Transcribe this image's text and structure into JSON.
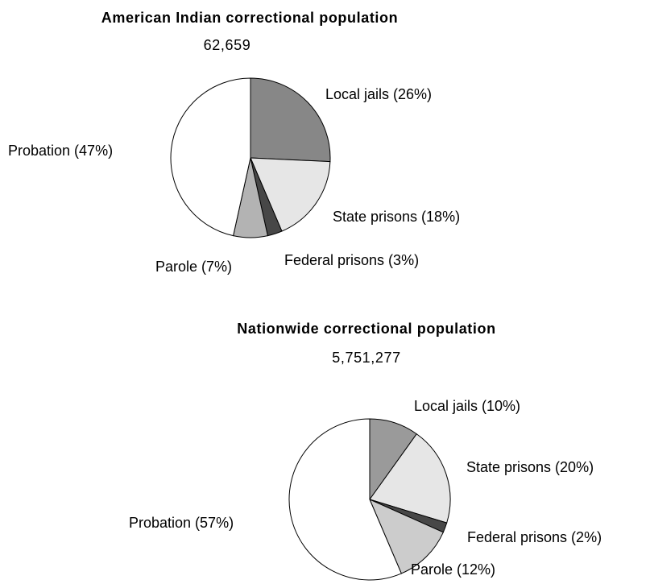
{
  "chart_data": [
    {
      "type": "pie",
      "title": "American Indian correctional population",
      "total": "62,659",
      "slices": [
        {
          "label": "Local jails (26%)",
          "value": 26,
          "color": "#878787"
        },
        {
          "label": "State prisons (18%)",
          "value": 18,
          "color": "#e6e6e6"
        },
        {
          "label": "Federal prisons (3%)",
          "value": 3,
          "color": "#474747"
        },
        {
          "label": "Parole (7%)",
          "value": 7,
          "color": "#b3b3b3"
        },
        {
          "label": "Probation (47%)",
          "value": 47,
          "color": "#ffffff"
        }
      ]
    },
    {
      "type": "pie",
      "title": "Nationwide correctional population",
      "total": "5,751,277",
      "slices": [
        {
          "label": "Local jails (10%)",
          "value": 10,
          "color": "#9a9a9a"
        },
        {
          "label": "State prisons (20%)",
          "value": 20,
          "color": "#e6e6e6"
        },
        {
          "label": "Federal prisons (2%)",
          "value": 2,
          "color": "#474747"
        },
        {
          "label": "Parole (12%)",
          "value": 12,
          "color": "#cccccc"
        },
        {
          "label": "Probation (57%)",
          "value": 57,
          "color": "#ffffff"
        }
      ]
    }
  ]
}
